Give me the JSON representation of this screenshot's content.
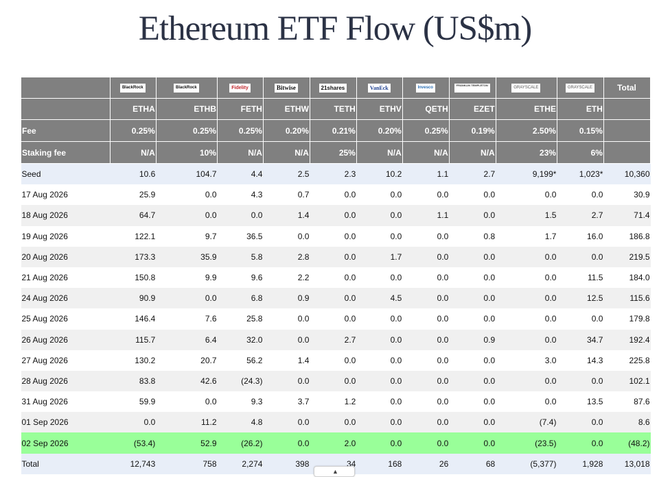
{
  "title": "Ethereum ETF Flow (US$m)",
  "chart_data": {
    "type": "table",
    "issuers": [
      "BlackRock",
      "BlackRock",
      "Fidelity",
      "Bitwise",
      "21shares",
      "VanEck",
      "Invesco",
      "FRANKLIN TEMPLETON",
      "GRAYSCALE",
      "GRAYSCALE"
    ],
    "total_header": "Total",
    "tickers": [
      "ETHA",
      "ETHB",
      "FETH",
      "ETHW",
      "TETH",
      "ETHV",
      "QETH",
      "EZET",
      "ETHE",
      "ETH"
    ],
    "fee_label": "Fee",
    "fees": [
      "0.25%",
      "0.25%",
      "0.25%",
      "0.20%",
      "0.21%",
      "0.20%",
      "0.25%",
      "0.19%",
      "2.50%",
      "0.15%"
    ],
    "staking_label": "Staking fee",
    "staking_fees": [
      "N/A",
      "10%",
      "N/A",
      "N/A",
      "25%",
      "N/A",
      "N/A",
      "N/A",
      "23%",
      "6%"
    ],
    "rows": [
      {
        "label": "Seed",
        "values": [
          "10.6",
          "104.7",
          "4.4",
          "2.5",
          "2.3",
          "10.2",
          "1.1",
          "2.7",
          "9,199*",
          "1,023*"
        ],
        "total": "10,360"
      },
      {
        "label": "17 Aug 2026",
        "values": [
          "25.9",
          "0.0",
          "4.3",
          "0.7",
          "0.0",
          "0.0",
          "0.0",
          "0.0",
          "0.0",
          "0.0"
        ],
        "total": "30.9"
      },
      {
        "label": "18 Aug 2026",
        "values": [
          "64.7",
          "0.0",
          "0.0",
          "1.4",
          "0.0",
          "0.0",
          "1.1",
          "0.0",
          "1.5",
          "2.7"
        ],
        "total": "71.4"
      },
      {
        "label": "19 Aug 2026",
        "values": [
          "122.1",
          "9.7",
          "36.5",
          "0.0",
          "0.0",
          "0.0",
          "0.0",
          "0.8",
          "1.7",
          "16.0"
        ],
        "total": "186.8"
      },
      {
        "label": "20 Aug 2026",
        "values": [
          "173.3",
          "35.9",
          "5.8",
          "2.8",
          "0.0",
          "1.7",
          "0.0",
          "0.0",
          "0.0",
          "0.0"
        ],
        "total": "219.5"
      },
      {
        "label": "21 Aug 2026",
        "values": [
          "150.8",
          "9.9",
          "9.6",
          "2.2",
          "0.0",
          "0.0",
          "0.0",
          "0.0",
          "0.0",
          "11.5"
        ],
        "total": "184.0"
      },
      {
        "label": "24 Aug 2026",
        "values": [
          "90.9",
          "0.0",
          "6.8",
          "0.9",
          "0.0",
          "4.5",
          "0.0",
          "0.0",
          "0.0",
          "12.5"
        ],
        "total": "115.6"
      },
      {
        "label": "25 Aug 2026",
        "values": [
          "146.4",
          "7.6",
          "25.8",
          "0.0",
          "0.0",
          "0.0",
          "0.0",
          "0.0",
          "0.0",
          "0.0"
        ],
        "total": "179.8"
      },
      {
        "label": "26 Aug 2026",
        "values": [
          "115.7",
          "6.4",
          "32.0",
          "0.0",
          "2.7",
          "0.0",
          "0.0",
          "0.9",
          "0.0",
          "34.7"
        ],
        "total": "192.4"
      },
      {
        "label": "27 Aug 2026",
        "values": [
          "130.2",
          "20.7",
          "56.2",
          "1.4",
          "0.0",
          "0.0",
          "0.0",
          "0.0",
          "3.0",
          "14.3"
        ],
        "total": "225.8"
      },
      {
        "label": "28 Aug 2026",
        "values": [
          "83.8",
          "42.6",
          "(24.3)",
          "0.0",
          "0.0",
          "0.0",
          "0.0",
          "0.0",
          "0.0",
          "0.0"
        ],
        "total": "102.1"
      },
      {
        "label": "31 Aug 2026",
        "values": [
          "59.9",
          "0.0",
          "9.3",
          "3.7",
          "1.2",
          "0.0",
          "0.0",
          "0.0",
          "0.0",
          "13.5"
        ],
        "total": "87.6"
      },
      {
        "label": "01 Sep 2026",
        "values": [
          "0.0",
          "11.2",
          "4.8",
          "0.0",
          "0.0",
          "0.0",
          "0.0",
          "0.0",
          "(7.4)",
          "0.0"
        ],
        "total": "8.6"
      },
      {
        "label": "02 Sep 2026",
        "values": [
          "(53.4)",
          "52.9",
          "(26.2)",
          "0.0",
          "2.0",
          "0.0",
          "0.0",
          "0.0",
          "(23.5)",
          "0.0"
        ],
        "total": "(48.2)"
      },
      {
        "label": "Total",
        "values": [
          "12,743",
          "758",
          "2,274",
          "398",
          "34",
          "168",
          "26",
          "68",
          "(5,377)",
          "1,928"
        ],
        "total": "13,018"
      }
    ],
    "row_styles": [
      "seed",
      "white",
      "shade",
      "white",
      "shade",
      "white",
      "shade",
      "white",
      "shade",
      "white",
      "shade",
      "white",
      "shade",
      "hl",
      "tot"
    ],
    "colors": {
      "header_bg": "#808080",
      "negative": "#e00000",
      "zero": "#c8c8c8",
      "highlight_row": "#99ff99",
      "seed_row": "#e8eef8",
      "alt_row": "#f0f0f0"
    }
  }
}
